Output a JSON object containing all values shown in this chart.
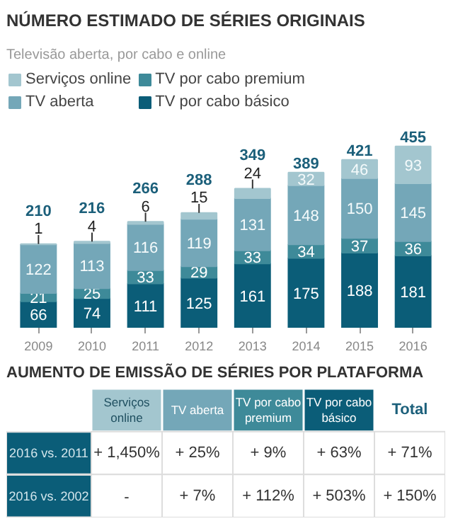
{
  "chart_data": [
    {
      "type": "bar",
      "stacked": true,
      "title": "NÚMERO ESTIMADO DE SÉRIES ORIGINAIS",
      "subtitle": "Televisão aberta, por cabo e online",
      "categories": [
        "2009",
        "2010",
        "2011",
        "2012",
        "2013",
        "2014",
        "2015",
        "2016"
      ],
      "series": [
        {
          "name": "TV por cabo básico",
          "color": "#0b5d78",
          "values": [
            66,
            74,
            111,
            125,
            161,
            175,
            188,
            181
          ]
        },
        {
          "name": "TV por cabo premium",
          "color": "#3e8a99",
          "values": [
            21,
            25,
            33,
            29,
            33,
            34,
            37,
            36
          ]
        },
        {
          "name": "TV aberta",
          "color": "#74a7b8",
          "values": [
            122,
            113,
            116,
            119,
            131,
            148,
            150,
            145
          ]
        },
        {
          "name": "Serviços online",
          "color": "#a3c6cf",
          "values": [
            1,
            4,
            6,
            15,
            24,
            32,
            46,
            93
          ]
        }
      ],
      "data_labels": true,
      "totals": [
        "210",
        "216",
        "266",
        "288",
        "349",
        "389",
        "421",
        "455"
      ],
      "legend": "top left",
      "tick_labels": "x"
    },
    {
      "type": "other",
      "title": "AUMENTO DE EMISSÃO DE SÉRIES POR PLATAFORMA",
      "categories": [
        "Serviços online",
        "TV aberta",
        "TV por cabo premium",
        "TV por cabo básico",
        "Total"
      ],
      "y_categories": [
        "2016 vs. 2011",
        "2016 vs. 2002"
      ],
      "colors": [
        "#a3c6cf",
        "#74a7b8",
        "#3e8a99",
        "#0b5d78",
        "#ffffff"
      ],
      "cell_labels": [
        [
          "+ 1,450%",
          "+ 25%",
          "+ 9%",
          "+ 63%",
          "+ 71%"
        ],
        [
          "-",
          "+ 7%",
          "+ 112%",
          "+ 503%",
          "+ 150%"
        ]
      ]
    }
  ]
}
